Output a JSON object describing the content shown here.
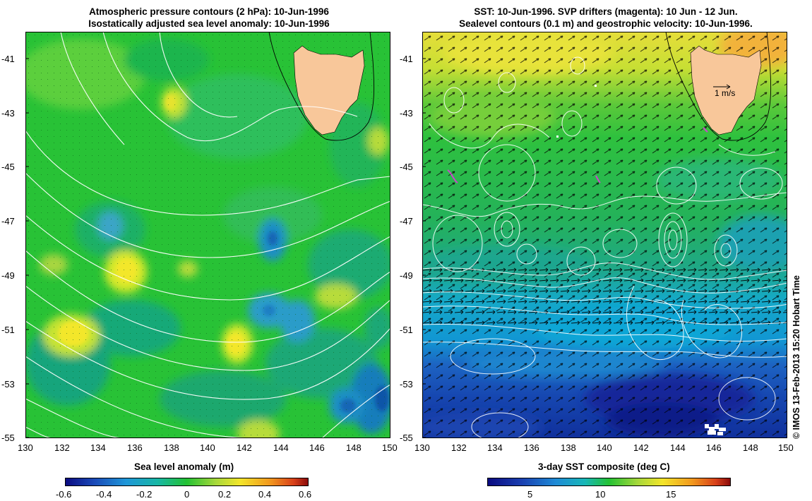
{
  "left_map": {
    "title_line1": "Atmospheric pressure contours (2 hPa): 10-Jun-1996",
    "title_line2": "Isostatically adjusted sea level anomaly: 10-Jun-1996",
    "lat_ticks": [
      "-41",
      "-43",
      "-45",
      "-47",
      "-49",
      "-51",
      "-53",
      "-55"
    ],
    "lon_ticks": [
      "130",
      "132",
      "134",
      "136",
      "138",
      "140",
      "142",
      "144",
      "146",
      "148",
      "150"
    ],
    "colorbar": {
      "title": "Sea level anomaly (m)",
      "ticks": [
        "-0.6",
        "-0.4",
        "-0.2",
        "0",
        "0.2",
        "0.4",
        "0.6"
      ],
      "range": [
        -0.6,
        0.6
      ]
    }
  },
  "right_map": {
    "title_line1": "SST: 10-Jun-1996. SVP drifters (magenta): 10 Jun - 12 Jun.",
    "title_line2": "Sealevel contours (0.1 m) and geostrophic velocity: 10-Jun-1996.",
    "lat_ticks": [
      "-41",
      "-43",
      "-45",
      "-47",
      "-49",
      "-51",
      "-53",
      "-55"
    ],
    "lon_ticks": [
      "130",
      "132",
      "134",
      "136",
      "138",
      "140",
      "142",
      "144",
      "146",
      "148",
      "150"
    ],
    "velocity_scale_label": "1 m/s",
    "colorbar": {
      "title": "3-day SST composite (deg C)",
      "ticks": [
        "5",
        "10",
        "15"
      ],
      "range": [
        2,
        19
      ]
    }
  },
  "credit": "© IMOS 13-Feb-2013 15:20 Hobart Time",
  "colors": {
    "land": "#f8c79a",
    "slm_base": "#22c033",
    "contour": "#ffffff",
    "drifter": "#cc44cc"
  }
}
